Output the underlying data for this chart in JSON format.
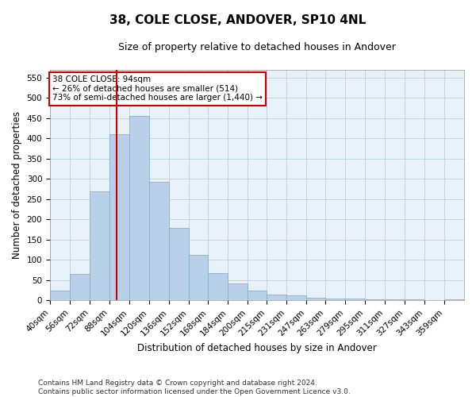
{
  "title": "38, COLE CLOSE, ANDOVER, SP10 4NL",
  "subtitle": "Size of property relative to detached houses in Andover",
  "xlabel": "Distribution of detached houses by size in Andover",
  "ylabel": "Number of detached properties",
  "bar_color": "#b8d0e8",
  "bar_edge_color": "#8ab0d0",
  "background_color": "#ffffff",
  "plot_bg_color": "#e8f0f8",
  "grid_color": "#c0d0e0",
  "vline_x": 94,
  "vline_color": "#cc0000",
  "annotation_text": "38 COLE CLOSE: 94sqm\n← 26% of detached houses are smaller (514)\n73% of semi-detached houses are larger (1,440) →",
  "annotation_box_color": "#ffffff",
  "annotation_box_edge_color": "#cc0000",
  "categories": [
    "40sqm",
    "56sqm",
    "72sqm",
    "88sqm",
    "104sqm",
    "120sqm",
    "136sqm",
    "152sqm",
    "168sqm",
    "184sqm",
    "200sqm",
    "215sqm",
    "231sqm",
    "247sqm",
    "263sqm",
    "279sqm",
    "295sqm",
    "311sqm",
    "327sqm",
    "343sqm",
    "359sqm"
  ],
  "bin_edges": [
    40,
    56,
    72,
    88,
    104,
    120,
    136,
    152,
    168,
    184,
    200,
    215,
    231,
    247,
    263,
    279,
    295,
    311,
    327,
    343,
    359,
    375
  ],
  "values": [
    25,
    65,
    270,
    410,
    455,
    293,
    180,
    113,
    68,
    43,
    25,
    15,
    12,
    6,
    5,
    5,
    3,
    2,
    2,
    1,
    3
  ],
  "ylim": [
    0,
    570
  ],
  "yticks": [
    0,
    50,
    100,
    150,
    200,
    250,
    300,
    350,
    400,
    450,
    500,
    550
  ],
  "footer": "Contains HM Land Registry data © Crown copyright and database right 2024.\nContains public sector information licensed under the Open Government Licence v3.0.",
  "title_fontsize": 11,
  "subtitle_fontsize": 9,
  "label_fontsize": 8.5,
  "tick_fontsize": 7.5,
  "footer_fontsize": 6.5
}
